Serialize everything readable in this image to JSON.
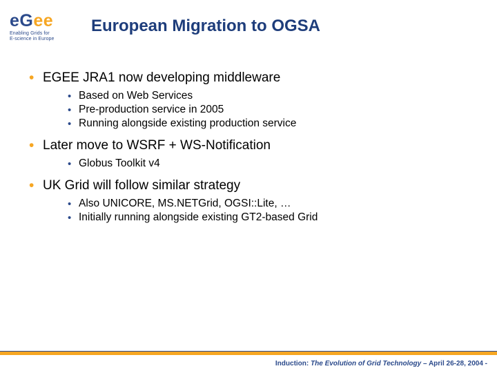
{
  "logo": {
    "letters": [
      "e",
      "G",
      "e",
      "e"
    ],
    "subtitle_l1": "Enabling Grids for",
    "subtitle_l2": "E-science in Europe"
  },
  "title": "European Migration to OGSA",
  "bullets": {
    "b1": "EGEE JRA1 now developing middleware",
    "b1_sub": [
      "Based on Web Services",
      "Pre-production service in 2005",
      "Running alongside existing production service"
    ],
    "b2": "Later move to WSRF + WS-Notification",
    "b2_sub": [
      "Globus Toolkit v4"
    ],
    "b3": "UK Grid will follow similar strategy",
    "b3_sub": [
      "Also UNICORE, MS.NETGrid, OGSI::Lite, …",
      "Initially running alongside existing GT2-based Grid"
    ]
  },
  "footer": {
    "lead": "Induction: ",
    "italic": "The Evolution of Grid Technology",
    "tail": " – April 26-28, 2004  -"
  },
  "colors": {
    "title": "#1e3d7b",
    "accent_orange": "#f6a623",
    "accent_blue": "#2b4a8b",
    "bg": "#ffffff"
  }
}
